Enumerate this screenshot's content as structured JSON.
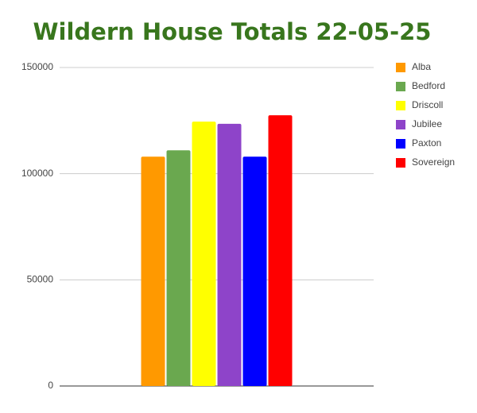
{
  "chart_data": {
    "type": "bar",
    "title": "Wildern House Totals 22-05-25",
    "categories": [
      null
    ],
    "series": [
      {
        "name": "Alba",
        "color": "#ff9900",
        "values": [
          108000
        ]
      },
      {
        "name": "Bedford",
        "color": "#6aa84f",
        "values": [
          111000
        ]
      },
      {
        "name": "Driscoll",
        "color": "#ffff00",
        "values": [
          124500
        ]
      },
      {
        "name": "Jubilee",
        "color": "#8e44c9",
        "values": [
          123500
        ]
      },
      {
        "name": "Paxton",
        "color": "#0000ff",
        "values": [
          108000
        ]
      },
      {
        "name": "Sovereign",
        "color": "#ff0000",
        "values": [
          127500
        ]
      }
    ],
    "ylim": [
      0,
      150000
    ],
    "yticks": [
      0,
      50000,
      100000,
      150000
    ],
    "grid": true,
    "legend": "right"
  }
}
